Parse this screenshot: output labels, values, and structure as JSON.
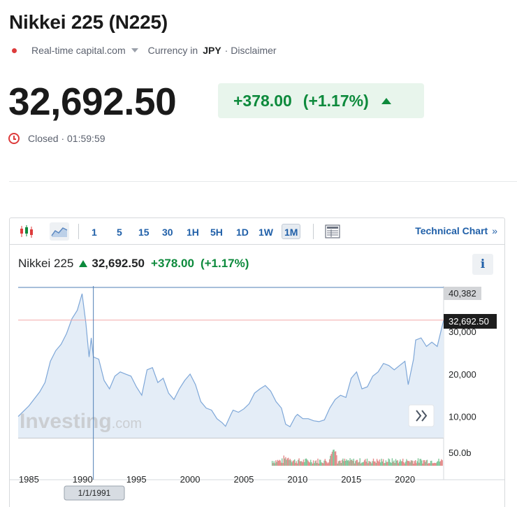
{
  "header": {
    "title": "Nikkei 225 (N225)",
    "source": "Real-time capital.com",
    "currency_prefix": "Currency in",
    "currency": "JPY",
    "disclaimer": "· Disclaimer"
  },
  "quote": {
    "price": "32,692.50",
    "change": "+378.00",
    "change_pct": "(+1.17%)",
    "status": "Closed · 01:59:59"
  },
  "toolbar": {
    "intervals": [
      "1",
      "5",
      "15",
      "30",
      "1H",
      "5H",
      "1D",
      "1W",
      "1M"
    ],
    "active_interval": "1M",
    "technical_chart": "Technical Chart",
    "technical_chevron": "»"
  },
  "chart_legend": {
    "name": "Nikkei 225",
    "price": "32,692.50",
    "change": "+378.00",
    "change_pct": "(+1.17%)",
    "info": "i"
  },
  "colors": {
    "up": "#0d8a3c",
    "down": "#dd3b3b",
    "link": "#1f5fa8",
    "line": "#7ea7d8",
    "area": "#e4edf7"
  },
  "chart_data": {
    "type": "area",
    "title": "",
    "xlabel": "",
    "ylabel": "",
    "x_ticks": [
      "1985",
      "1990",
      "1995",
      "2000",
      "2005",
      "2010",
      "2015",
      "2020"
    ],
    "y_ticks": [
      "10,000",
      "20,000",
      "30,000"
    ],
    "y_top_label": "40,382",
    "price_label": "32,692.50",
    "volume_label": "50.0b",
    "crosshair_date": "1/1/1991",
    "watermark": "Investing",
    "watermark_suffix": ".com",
    "ylim": [
      5000,
      40382
    ],
    "xlim": [
      1984,
      2023.6
    ],
    "series": [
      {
        "x": [
          1984,
          1985,
          1986,
          1986.5,
          1987,
          1987.5,
          1988,
          1988.5,
          1989,
          1989.5,
          1989.95,
          1990.3,
          1990.6,
          1990.8,
          1991,
          1991.5,
          1992,
          1992.5,
          1993,
          1993.5,
          1994,
          1994.5,
          1995,
          1995.5,
          1996,
          1996.5,
          1997,
          1997.5,
          1998,
          1998.5,
          1999,
          1999.5,
          2000,
          2000.5,
          2001,
          2001.5,
          2002,
          2002.5,
          2003,
          2003.3,
          2003.8,
          2004,
          2004.5,
          2005,
          2005.5,
          2006,
          2006.5,
          2007,
          2007.5,
          2008,
          2008.5,
          2008.9,
          2009.3,
          2009.8,
          2010,
          2010.5,
          2011,
          2011.5,
          2012,
          2012.5,
          2013,
          2013.5,
          2014,
          2014.5,
          2015,
          2015.5,
          2016,
          2016.5,
          2017,
          2017.5,
          2018,
          2018.5,
          2019,
          2019.5,
          2020,
          2020.3,
          2020.8,
          2021,
          2021.5,
          2022,
          2022.5,
          2023,
          2023.6
        ],
        "y": [
          10000,
          12500,
          15800,
          18000,
          23000,
          25500,
          27000,
          29500,
          33000,
          35000,
          38900,
          32000,
          24000,
          28500,
          24000,
          23500,
          18500,
          16500,
          19500,
          20500,
          20000,
          19500,
          17000,
          15000,
          21000,
          21500,
          18000,
          19000,
          15500,
          14000,
          16500,
          18500,
          20000,
          17500,
          13500,
          12000,
          11500,
          9500,
          8500,
          7700,
          10500,
          11500,
          11000,
          11800,
          13000,
          15500,
          16500,
          17300,
          16000,
          13500,
          12000,
          8200,
          7600,
          10000,
          10500,
          9500,
          9500,
          9000,
          8800,
          9200,
          12000,
          14000,
          15000,
          14500,
          19000,
          20500,
          16500,
          17000,
          19500,
          20500,
          22500,
          22000,
          21000,
          22000,
          23000,
          17500,
          23500,
          28000,
          28500,
          26500,
          27500,
          26500,
          32692
        ]
      }
    ]
  }
}
